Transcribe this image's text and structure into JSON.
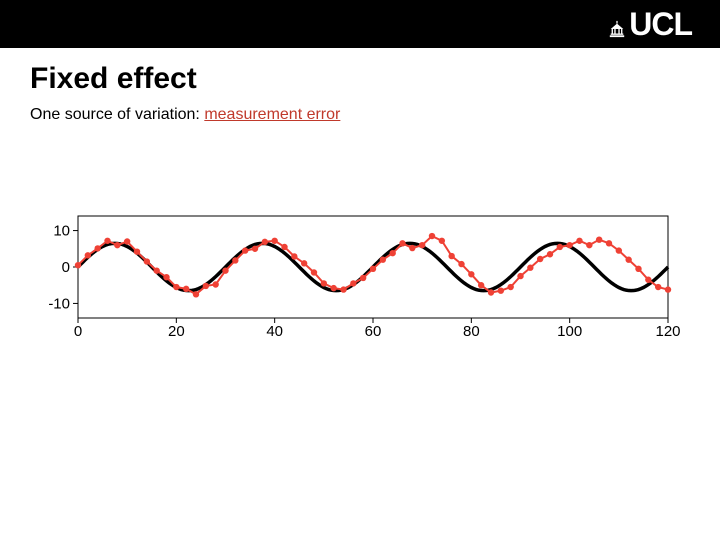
{
  "header": {
    "logo_text": "UCL"
  },
  "title": "Fixed effect",
  "subtitle_prefix": "One source of variation: ",
  "subtitle_accent": "measurement error",
  "accent_color": "#c0392b",
  "chart": {
    "type": "line",
    "background_color": "#ffffff",
    "axis_color": "#000000",
    "tick_fontsize": 15,
    "xlim": [
      0,
      120
    ],
    "ylim": [
      -14,
      14
    ],
    "xticks": [
      0,
      20,
      40,
      60,
      80,
      100,
      120
    ],
    "yticks": [
      -10,
      0,
      10
    ],
    "black_curve": {
      "color": "#000000",
      "line_width": 3.5,
      "amplitude": 6.5,
      "period": 30,
      "n_points": 240
    },
    "red_series": {
      "color": "#ef4135",
      "line_width": 2,
      "marker_radius": 3.2,
      "x": [
        0,
        2,
        4,
        6,
        8,
        10,
        12,
        14,
        16,
        18,
        20,
        22,
        24,
        26,
        28,
        30,
        32,
        34,
        36,
        38,
        40,
        42,
        44,
        46,
        48,
        50,
        52,
        54,
        56,
        58,
        60,
        62,
        64,
        66,
        68,
        70,
        72,
        74,
        76,
        78,
        80,
        82,
        84,
        86,
        88,
        90,
        92,
        94,
        96,
        98,
        100,
        102,
        104,
        106,
        108,
        110,
        112,
        114,
        116,
        118,
        120
      ],
      "y": [
        0.5,
        3.2,
        5.1,
        7.2,
        6.0,
        7.0,
        4.2,
        1.5,
        -1.0,
        -2.8,
        -5.5,
        -6.0,
        -7.5,
        -5.2,
        -4.8,
        -1.0,
        1.8,
        4.5,
        5.0,
        6.9,
        7.2,
        5.5,
        2.9,
        1.0,
        -1.5,
        -4.5,
        -5.8,
        -6.2,
        -4.5,
        -3.0,
        -0.5,
        2.0,
        3.8,
        6.5,
        5.2,
        6.0,
        8.5,
        7.2,
        3.0,
        0.8,
        -2.0,
        -5.0,
        -7.0,
        -6.5,
        -5.5,
        -2.5,
        -0.2,
        2.2,
        3.5,
        5.5,
        6.0,
        7.2,
        6.0,
        7.5,
        6.5,
        4.5,
        2.0,
        -0.5,
        -3.5,
        -5.5,
        -6.2
      ]
    }
  }
}
